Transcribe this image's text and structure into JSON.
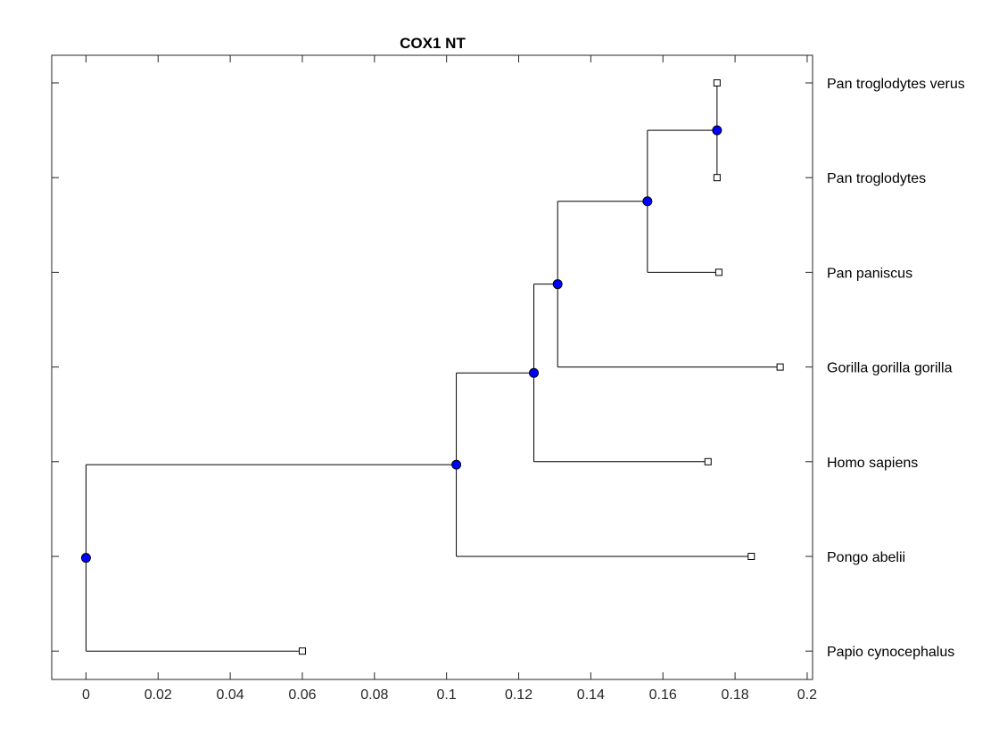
{
  "chart_data": {
    "type": "dendrogram",
    "title": "COX1 NT",
    "xlim": [
      -0.0095,
      0.2015
    ],
    "x_ticks": [
      0,
      0.02,
      0.04,
      0.06,
      0.08,
      0.1,
      0.12,
      0.14,
      0.16,
      0.18,
      0.2
    ],
    "x_tick_labels": [
      "0",
      "0.02",
      "0.04",
      "0.06",
      "0.08",
      "0.1",
      "0.12",
      "0.14",
      "0.16",
      "0.18",
      "0.2"
    ],
    "xlabel": "",
    "ylabel": "",
    "grid": false,
    "leaf_labels": [
      "Pan troglodytes verus",
      "Pan troglodytes",
      "Pan paniscus",
      "Gorilla gorilla gorilla",
      "Homo sapiens",
      "Pongo abelii",
      "Papio cynocephalus"
    ],
    "leaves": [
      {
        "name": "Pan troglodytes verus",
        "x": 0.175
      },
      {
        "name": "Pan troglodytes",
        "x": 0.175
      },
      {
        "name": "Pan paniscus",
        "x": 0.1755
      },
      {
        "name": "Gorilla gorilla gorilla",
        "x": 0.1925
      },
      {
        "name": "Homo sapiens",
        "x": 0.1725
      },
      {
        "name": "Pongo abelii",
        "x": 0.1845
      },
      {
        "name": "Papio cynocephalus",
        "x": 0.06
      }
    ],
    "nodes": [
      {
        "x": 0.175,
        "children": [
          0,
          1
        ]
      },
      {
        "x": 0.1557,
        "children": [
          "n0",
          2
        ]
      },
      {
        "x": 0.1308,
        "children": [
          "n1",
          3
        ]
      },
      {
        "x": 0.1242,
        "children": [
          "n2",
          4
        ]
      },
      {
        "x": 0.1027,
        "children": [
          "n3",
          5
        ]
      },
      {
        "x": 0.0,
        "children": [
          "n4",
          6
        ]
      }
    ],
    "colors": {
      "line": "#000000",
      "node_fill": "#0000ff",
      "leaf_fill": "#ffffff"
    }
  }
}
